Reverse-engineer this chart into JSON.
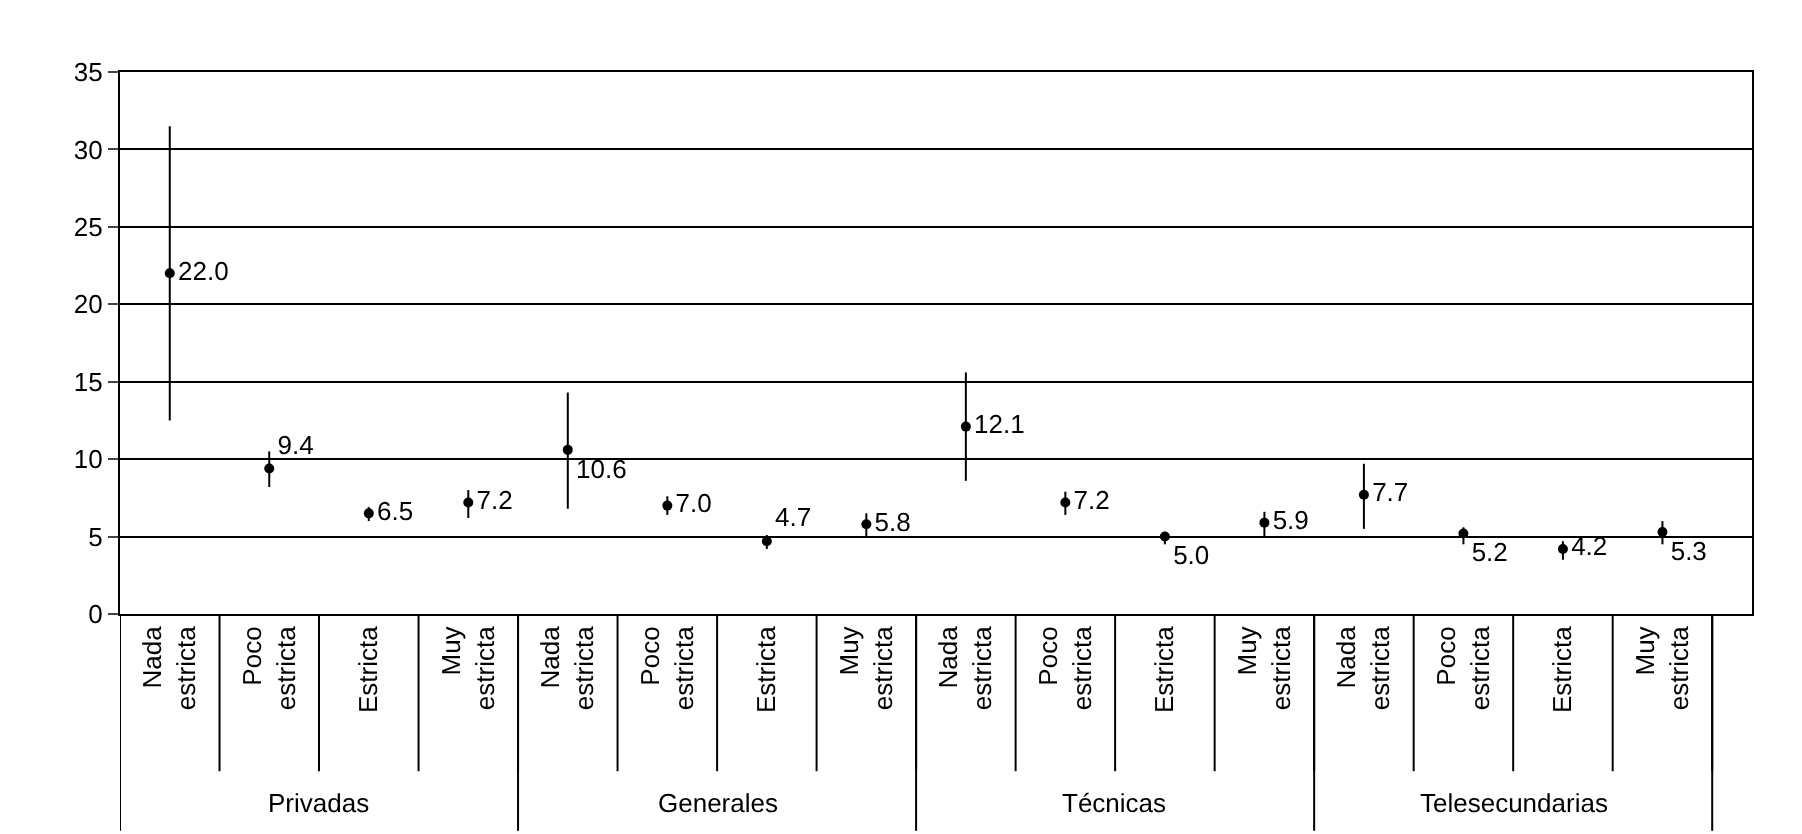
{
  "chart_data": {
    "type": "scatter",
    "categories": [
      "Nada estricta",
      "Poco estricta",
      "Estricta",
      "Muy estricta",
      "Nada estricta",
      "Poco estricta",
      "Estricta",
      "Muy estricta",
      "Nada estricta",
      "Poco estricta",
      "Estricta",
      "Muy estricta",
      "Nada estricta",
      "Poco estricta",
      "Estricta",
      "Muy estricta"
    ],
    "annotations": [
      "Privadas",
      "Generales",
      "Técnicas",
      "Telesecundarias"
    ],
    "series": [
      {
        "color": "#000000",
        "values": [
          22.0,
          9.4,
          6.5,
          7.2,
          10.6,
          7.0,
          4.7,
          5.8,
          12.1,
          7.2,
          5.0,
          5.9,
          7.7,
          5.2,
          4.2,
          5.3
        ],
        "value_labels": [
          "22.0",
          "9.4",
          "6.5",
          "7.2",
          "10.6",
          "7.0",
          "4.7",
          "5.8",
          "12.1",
          "7.2",
          "5.0",
          "5.9",
          "7.7",
          "5.2",
          "4.2",
          "5.3"
        ],
        "errors": [
          [
            12.5,
            31.5
          ],
          [
            8.2,
            10.5
          ],
          [
            6.0,
            6.9
          ],
          [
            6.2,
            8.0
          ],
          [
            6.8,
            14.3
          ],
          [
            6.4,
            7.6
          ],
          [
            4.2,
            5.1
          ],
          [
            5.0,
            6.5
          ],
          [
            8.6,
            15.6
          ],
          [
            6.4,
            7.9
          ],
          [
            4.5,
            5.3
          ],
          [
            5.0,
            6.6
          ],
          [
            5.5,
            9.7
          ],
          [
            4.5,
            5.6
          ],
          [
            3.5,
            4.7
          ],
          [
            4.5,
            6.0
          ]
        ]
      }
    ],
    "ylim": [
      0,
      35
    ],
    "yticks": [
      0,
      5,
      10,
      15,
      20,
      25,
      30,
      35
    ],
    "grid": "y",
    "marker": "circle"
  }
}
